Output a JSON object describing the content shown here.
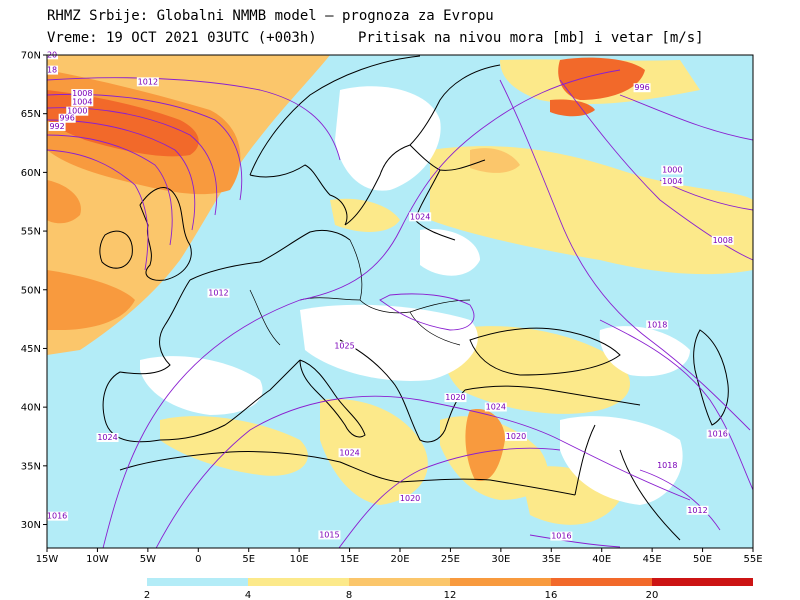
{
  "header": {
    "line1": "RHMZ Srbije: Globalni NMMB model — prognoza za Evropu",
    "line2": "Vreme: 19 OCT 2021 03UTC (+003h)",
    "subtitle": "Pritisak na nivou mora [mb] i vetar [m/s]"
  },
  "map": {
    "lon_range": [
      -15,
      55
    ],
    "lat_range": [
      28,
      70
    ],
    "lon_ticks": [
      "15W",
      "10W",
      "5W",
      "0",
      "5E",
      "10E",
      "15E",
      "20E",
      "25E",
      "30E",
      "35E",
      "40E",
      "45E",
      "50E",
      "55E"
    ],
    "lat_ticks": [
      "70N",
      "65N",
      "60N",
      "55N",
      "50N",
      "45N",
      "40N",
      "35N",
      "30N"
    ],
    "isobar_labels": [
      {
        "text": "1012",
        "lon": -5,
        "lat": 67.5
      },
      {
        "text": "1008",
        "lon": -11.5,
        "lat": 66.5
      },
      {
        "text": "1004",
        "lon": -11.5,
        "lat": 65.8
      },
      {
        "text": "1000",
        "lon": -12,
        "lat": 65.0
      },
      {
        "text": "996",
        "lon": -13,
        "lat": 64.4
      },
      {
        "text": "992",
        "lon": -14,
        "lat": 63.7
      },
      {
        "text": "996",
        "lon": 44,
        "lat": 67.0
      },
      {
        "text": "1000",
        "lon": 47,
        "lat": 60.0
      },
      {
        "text": "1004",
        "lon": 47,
        "lat": 59.0
      },
      {
        "text": "1008",
        "lon": 52,
        "lat": 54.0
      },
      {
        "text": "1024",
        "lon": 22,
        "lat": 56.0
      },
      {
        "text": "1012",
        "lon": 2,
        "lat": 49.5
      },
      {
        "text": "1025",
        "lon": 14.5,
        "lat": 45.0
      },
      {
        "text": "1020",
        "lon": 25.5,
        "lat": 40.6
      },
      {
        "text": "1024",
        "lon": 29.5,
        "lat": 39.8
      },
      {
        "text": "1020",
        "lon": 31.5,
        "lat": 37.3
      },
      {
        "text": "1024",
        "lon": -9,
        "lat": 37.2
      },
      {
        "text": "1024",
        "lon": 15,
        "lat": 35.9
      },
      {
        "text": "1020",
        "lon": 21,
        "lat": 32.0
      },
      {
        "text": "1016",
        "lon": -14,
        "lat": 30.5
      },
      {
        "text": "1015",
        "lon": 13,
        "lat": 28.9
      },
      {
        "text": "1016",
        "lon": 36,
        "lat": 28.8
      },
      {
        "text": "1012",
        "lon": 49.5,
        "lat": 31.0
      },
      {
        "text": "1018",
        "lon": 45.5,
        "lat": 46.8
      },
      {
        "text": "1016",
        "lon": 51.5,
        "lat": 37.5
      },
      {
        "text": "1018",
        "lon": 46.5,
        "lat": 34.8
      },
      {
        "text": "20",
        "lon": -14.5,
        "lat": 69.8
      },
      {
        "text": "18",
        "lon": -14.5,
        "lat": 68.5
      }
    ]
  },
  "colorbar": {
    "ticks": [
      "2",
      "4",
      "8",
      "12",
      "16",
      "20"
    ],
    "colors": [
      "#b3ecf7",
      "#fce98a",
      "#fbc66b",
      "#f89a3e",
      "#f2692a",
      "#cc1414"
    ]
  }
}
